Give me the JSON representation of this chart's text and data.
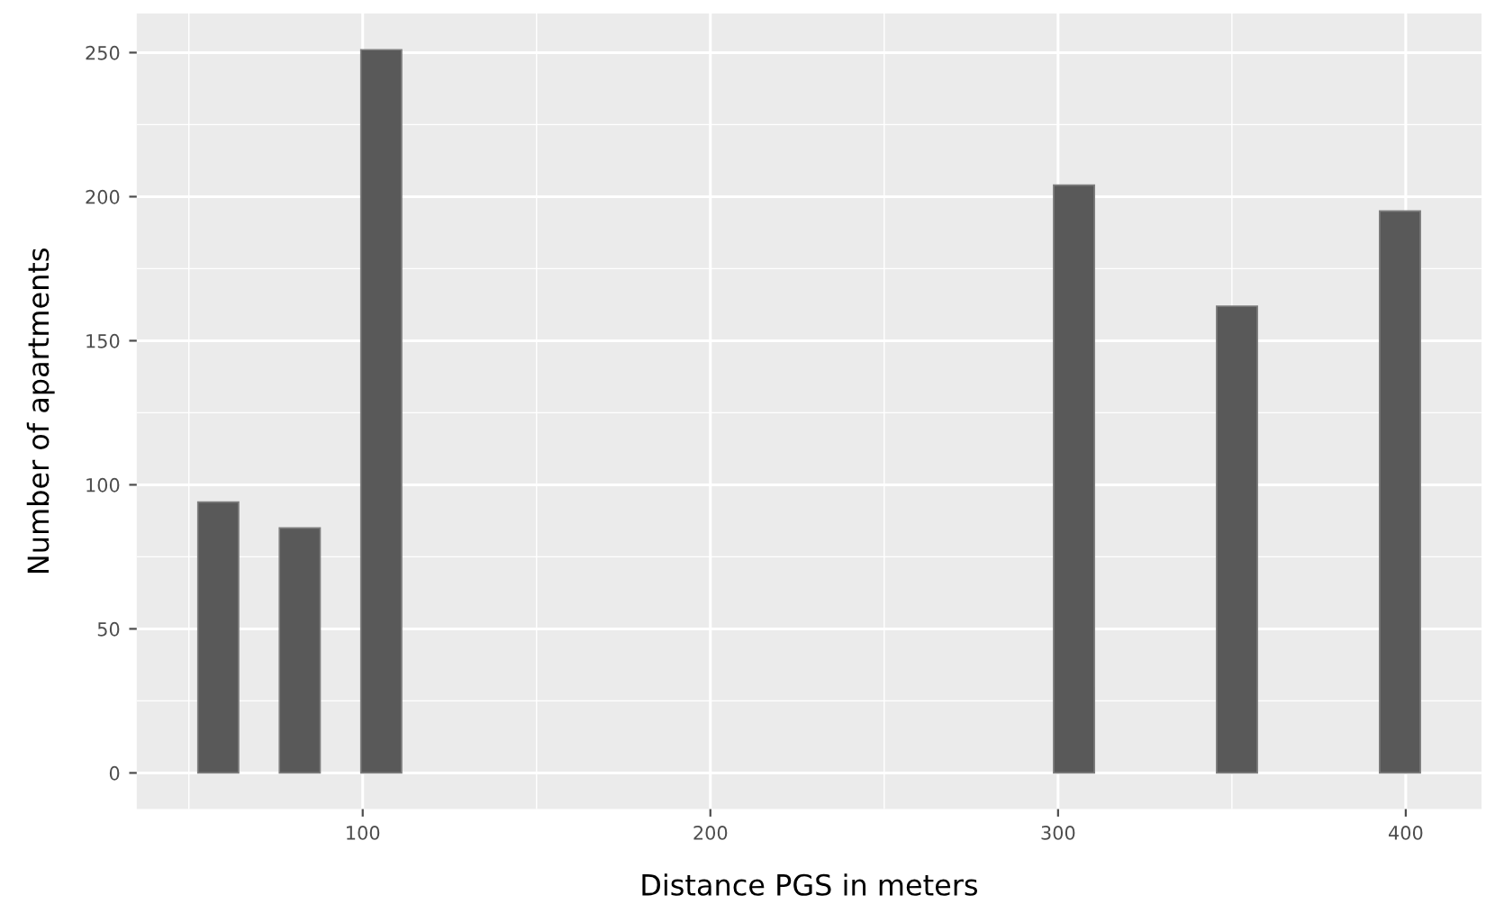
{
  "chart_data": {
    "type": "histogram",
    "xlabel": "Distance PGS in meters",
    "ylabel": "Number of apartments",
    "bins": [
      52.6,
      64.32,
      76.04,
      87.76,
      99.48,
      111.2,
      122.92,
      134.64,
      146.36,
      158.08,
      169.8,
      181.52,
      193.24,
      204.96,
      216.68,
      228.4,
      240.12,
      251.84,
      263.56,
      275.28,
      287.0,
      298.72,
      310.44,
      322.16,
      333.88,
      345.6,
      357.32,
      369.04,
      380.76,
      392.48,
      404.2
    ],
    "values": [
      94,
      0,
      85,
      0,
      251,
      0,
      0,
      0,
      0,
      0,
      0,
      0,
      0,
      0,
      0,
      0,
      0,
      0,
      0,
      0,
      0,
      204,
      0,
      0,
      0,
      162,
      0,
      0,
      0,
      195
    ],
    "color": "#595959",
    "xlim": [
      35,
      421.8
    ],
    "ylim": [
      -12.55,
      263.55
    ],
    "xticks": [
      100,
      200,
      300,
      400
    ],
    "yticks": [
      0,
      50,
      100,
      150,
      200,
      250
    ],
    "grid": true
  }
}
